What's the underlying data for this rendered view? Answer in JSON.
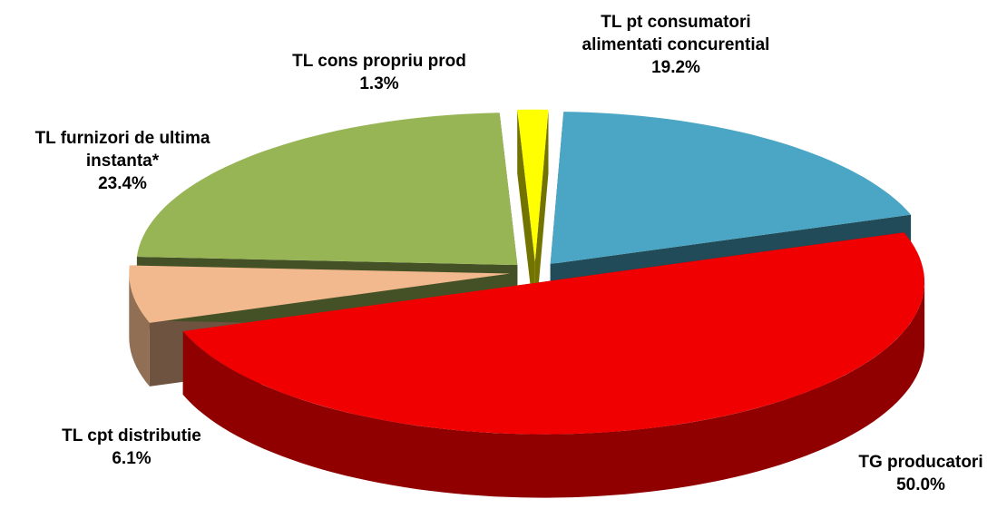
{
  "chart_data": {
    "type": "pie",
    "categories": [
      "TL pt consumatori alimentati concurential",
      "TG producatori",
      "TL cpt distributie",
      "TL furnizori de ultima instanta*",
      "TL cons propriu prod"
    ],
    "values": [
      19.2,
      50.0,
      6.1,
      23.4,
      1.3
    ],
    "value_labels": [
      "19.2%",
      "50.0%",
      "6.1%",
      "23.4%",
      "1.3%"
    ],
    "colors": [
      "#4aa6c4",
      "#f00000",
      "#f2b98e",
      "#97b555",
      "#ffff00"
    ]
  }
}
